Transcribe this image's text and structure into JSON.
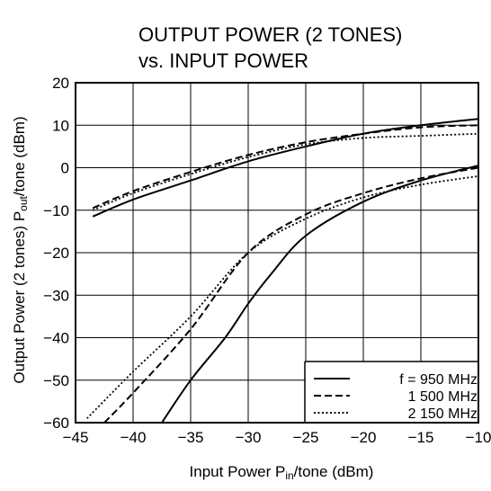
{
  "chart_data": {
    "type": "line",
    "title": [
      "OUTPUT POWER (2 TONES)",
      "vs. INPUT POWER"
    ],
    "xlabel": {
      "prefix": "Input Power  P",
      "sub": "in",
      "suffix": "/tone (dBm)"
    },
    "ylabel": {
      "prefix": "Output Power  (2 tones)  P",
      "sub": "out",
      "suffix": "/tone (dBm)"
    },
    "xlim": [
      -45,
      -10
    ],
    "ylim": [
      -60,
      20
    ],
    "xticks": [
      -45,
      -40,
      -35,
      -30,
      -25,
      -20,
      -15,
      -10
    ],
    "yticks": [
      -60,
      -50,
      -40,
      -30,
      -20,
      -10,
      0,
      10,
      20
    ],
    "xtick_labels": [
      "−45",
      "−40",
      "−35",
      "−30",
      "−25",
      "−20",
      "−15",
      "−10"
    ],
    "ytick_labels": [
      "−60",
      "−50",
      "−40",
      "−30",
      "−20",
      "−10",
      "0",
      "10",
      "20"
    ],
    "grid": true,
    "legend_position": "bottom-right",
    "legend": [
      {
        "label": "f = 950 MHz",
        "style": "solid"
      },
      {
        "label": "1 500 MHz",
        "style": "dashed"
      },
      {
        "label": "2 150 MHz",
        "style": "dotted"
      }
    ],
    "series": [
      {
        "style": "solid",
        "group": "fundamental",
        "x": [
          -43.5,
          -40,
          -35,
          -30,
          -25,
          -20,
          -15,
          -10
        ],
        "y": [
          -11.5,
          -7.5,
          -3,
          1.5,
          5,
          8,
          10,
          11.5
        ]
      },
      {
        "style": "dashed",
        "group": "fundamental",
        "x": [
          -43.5,
          -40,
          -35,
          -30,
          -25,
          -20,
          -15,
          -10
        ],
        "y": [
          -9.5,
          -5.5,
          -1,
          3,
          6,
          8,
          9.5,
          10
        ]
      },
      {
        "style": "dotted",
        "group": "fundamental",
        "x": [
          -43.5,
          -40,
          -35,
          -30,
          -25,
          -20,
          -15,
          -10
        ],
        "y": [
          -10,
          -6,
          -1.5,
          2.5,
          5.5,
          7,
          7.5,
          8
        ]
      },
      {
        "style": "solid",
        "group": "third-order",
        "x": [
          -37.5,
          -35,
          -32,
          -30,
          -28,
          -25,
          -20,
          -15,
          -10
        ],
        "y": [
          -60,
          -50,
          -40,
          -32,
          -25,
          -16,
          -8,
          -3,
          0.5
        ]
      },
      {
        "style": "dashed",
        "group": "third-order",
        "x": [
          -42.5,
          -40,
          -35,
          -30,
          -25,
          -20,
          -15,
          -10
        ],
        "y": [
          -60,
          -53,
          -38,
          -20,
          -11,
          -6,
          -2.5,
          0
        ]
      },
      {
        "style": "dotted",
        "group": "third-order",
        "x": [
          -44,
          -40,
          -35,
          -30,
          -25,
          -20,
          -15,
          -10
        ],
        "y": [
          -59,
          -48,
          -35,
          -20,
          -12,
          -7,
          -4,
          -2
        ]
      }
    ]
  }
}
